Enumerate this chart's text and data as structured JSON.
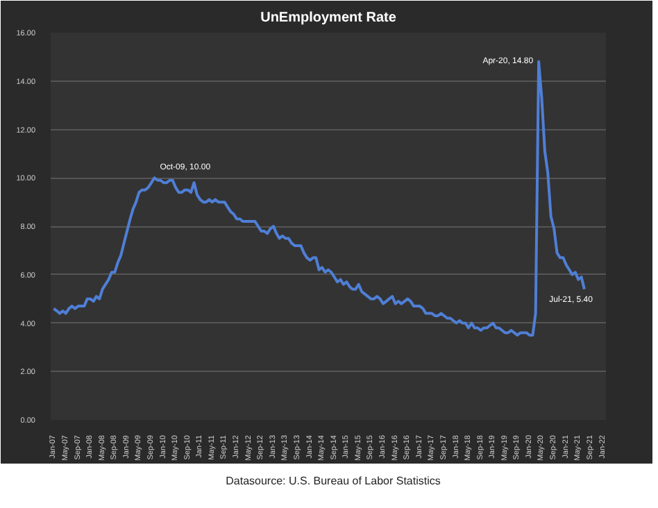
{
  "chart_data": {
    "type": "line",
    "title": "UnEmployment Rate",
    "x": [
      "2007-01",
      "2007-02",
      "2007-03",
      "2007-04",
      "2007-05",
      "2007-06",
      "2007-07",
      "2007-08",
      "2007-09",
      "2007-10",
      "2007-11",
      "2007-12",
      "2008-01",
      "2008-02",
      "2008-03",
      "2008-04",
      "2008-05",
      "2008-06",
      "2008-07",
      "2008-08",
      "2008-09",
      "2008-10",
      "2008-11",
      "2008-12",
      "2009-01",
      "2009-02",
      "2009-03",
      "2009-04",
      "2009-05",
      "2009-06",
      "2009-07",
      "2009-08",
      "2009-09",
      "2009-10",
      "2009-11",
      "2009-12",
      "2010-01",
      "2010-02",
      "2010-03",
      "2010-04",
      "2010-05",
      "2010-06",
      "2010-07",
      "2010-08",
      "2010-09",
      "2010-10",
      "2010-11",
      "2010-12",
      "2011-01",
      "2011-02",
      "2011-03",
      "2011-04",
      "2011-05",
      "2011-06",
      "2011-07",
      "2011-08",
      "2011-09",
      "2011-10",
      "2011-11",
      "2011-12",
      "2012-01",
      "2012-02",
      "2012-03",
      "2012-04",
      "2012-05",
      "2012-06",
      "2012-07",
      "2012-08",
      "2012-09",
      "2012-10",
      "2012-11",
      "2012-12",
      "2013-01",
      "2013-02",
      "2013-03",
      "2013-04",
      "2013-05",
      "2013-06",
      "2013-07",
      "2013-08",
      "2013-09",
      "2013-10",
      "2013-11",
      "2013-12",
      "2014-01",
      "2014-02",
      "2014-03",
      "2014-04",
      "2014-05",
      "2014-06",
      "2014-07",
      "2014-08",
      "2014-09",
      "2014-10",
      "2014-11",
      "2014-12",
      "2015-01",
      "2015-02",
      "2015-03",
      "2015-04",
      "2015-05",
      "2015-06",
      "2015-07",
      "2015-08",
      "2015-09",
      "2015-10",
      "2015-11",
      "2015-12",
      "2016-01",
      "2016-02",
      "2016-03",
      "2016-04",
      "2016-05",
      "2016-06",
      "2016-07",
      "2016-08",
      "2016-09",
      "2016-10",
      "2016-11",
      "2016-12",
      "2017-01",
      "2017-02",
      "2017-03",
      "2017-04",
      "2017-05",
      "2017-06",
      "2017-07",
      "2017-08",
      "2017-09",
      "2017-10",
      "2017-11",
      "2017-12",
      "2018-01",
      "2018-02",
      "2018-03",
      "2018-04",
      "2018-05",
      "2018-06",
      "2018-07",
      "2018-08",
      "2018-09",
      "2018-10",
      "2018-11",
      "2018-12",
      "2019-01",
      "2019-02",
      "2019-03",
      "2019-04",
      "2019-05",
      "2019-06",
      "2019-07",
      "2019-08",
      "2019-09",
      "2019-10",
      "2019-11",
      "2019-12",
      "2020-01",
      "2020-02",
      "2020-03",
      "2020-04",
      "2020-05",
      "2020-06",
      "2020-07",
      "2020-08",
      "2020-09",
      "2020-10",
      "2020-11",
      "2020-12",
      "2021-01",
      "2021-02",
      "2021-03",
      "2021-04",
      "2021-05",
      "2021-06",
      "2021-07"
    ],
    "series": [
      {
        "color": "#4f7fd6",
        "values": [
          4.6,
          4.5,
          4.4,
          4.5,
          4.4,
          4.6,
          4.7,
          4.6,
          4.7,
          4.7,
          4.7,
          5.0,
          5.0,
          4.9,
          5.1,
          5.0,
          5.4,
          5.6,
          5.8,
          6.1,
          6.1,
          6.5,
          6.8,
          7.3,
          7.8,
          8.3,
          8.7,
          9.0,
          9.4,
          9.5,
          9.5,
          9.6,
          9.8,
          10.0,
          9.9,
          9.9,
          9.8,
          9.8,
          9.9,
          9.9,
          9.6,
          9.4,
          9.4,
          9.5,
          9.5,
          9.4,
          9.8,
          9.3,
          9.1,
          9.0,
          9.0,
          9.1,
          9.0,
          9.1,
          9.0,
          9.0,
          9.0,
          8.8,
          8.6,
          8.5,
          8.3,
          8.3,
          8.2,
          8.2,
          8.2,
          8.2,
          8.2,
          8.0,
          7.8,
          7.8,
          7.7,
          7.9,
          8.0,
          7.7,
          7.5,
          7.6,
          7.5,
          7.5,
          7.3,
          7.2,
          7.2,
          7.2,
          6.9,
          6.7,
          6.6,
          6.7,
          6.7,
          6.2,
          6.3,
          6.1,
          6.2,
          6.1,
          5.9,
          5.7,
          5.8,
          5.6,
          5.7,
          5.5,
          5.4,
          5.4,
          5.6,
          5.3,
          5.2,
          5.1,
          5.0,
          5.0,
          5.1,
          5.0,
          4.8,
          4.9,
          5.0,
          5.1,
          4.8,
          4.9,
          4.8,
          4.9,
          5.0,
          4.9,
          4.7,
          4.7,
          4.7,
          4.6,
          4.4,
          4.4,
          4.4,
          4.3,
          4.3,
          4.4,
          4.3,
          4.2,
          4.2,
          4.1,
          4.0,
          4.1,
          4.0,
          4.0,
          3.8,
          4.0,
          3.8,
          3.8,
          3.7,
          3.8,
          3.8,
          3.9,
          4.0,
          3.8,
          3.8,
          3.7,
          3.6,
          3.6,
          3.7,
          3.6,
          3.5,
          3.6,
          3.6,
          3.6,
          3.5,
          3.5,
          4.4,
          14.8,
          13.3,
          11.1,
          10.2,
          8.4,
          7.9,
          6.9,
          6.7,
          6.7,
          6.4,
          6.2,
          6.0,
          6.1,
          5.8,
          5.9,
          5.4
        ]
      }
    ],
    "xlim": [
      "2006-12",
      "2022-02"
    ],
    "xticks": [
      {
        "value": "2007-01",
        "label": "Jan-07"
      },
      {
        "value": "2007-05",
        "label": "May-07"
      },
      {
        "value": "2007-09",
        "label": "Sep-07"
      },
      {
        "value": "2008-01",
        "label": "Jan-08"
      },
      {
        "value": "2008-05",
        "label": "May-08"
      },
      {
        "value": "2008-09",
        "label": "Sep-08"
      },
      {
        "value": "2009-01",
        "label": "Jan-09"
      },
      {
        "value": "2009-05",
        "label": "May-09"
      },
      {
        "value": "2009-09",
        "label": "Sep-09"
      },
      {
        "value": "2010-01",
        "label": "Jan-10"
      },
      {
        "value": "2010-05",
        "label": "May-10"
      },
      {
        "value": "2010-09",
        "label": "Sep-10"
      },
      {
        "value": "2011-01",
        "label": "Jan-11"
      },
      {
        "value": "2011-05",
        "label": "May-11"
      },
      {
        "value": "2011-09",
        "label": "Sep-11"
      },
      {
        "value": "2012-01",
        "label": "Jan-12"
      },
      {
        "value": "2012-05",
        "label": "May-12"
      },
      {
        "value": "2012-09",
        "label": "Sep-12"
      },
      {
        "value": "2013-01",
        "label": "Jan-13"
      },
      {
        "value": "2013-05",
        "label": "May-13"
      },
      {
        "value": "2013-09",
        "label": "Sep-13"
      },
      {
        "value": "2014-01",
        "label": "Jan-14"
      },
      {
        "value": "2014-05",
        "label": "May-14"
      },
      {
        "value": "2014-09",
        "label": "Sep-14"
      },
      {
        "value": "2015-01",
        "label": "Jan-15"
      },
      {
        "value": "2015-05",
        "label": "May-15"
      },
      {
        "value": "2015-09",
        "label": "Sep-15"
      },
      {
        "value": "2016-01",
        "label": "Jan-16"
      },
      {
        "value": "2016-05",
        "label": "May-16"
      },
      {
        "value": "2016-09",
        "label": "Sep-16"
      },
      {
        "value": "2017-01",
        "label": "Jan-17"
      },
      {
        "value": "2017-05",
        "label": "May-17"
      },
      {
        "value": "2017-09",
        "label": "Sep-17"
      },
      {
        "value": "2018-01",
        "label": "Jan-18"
      },
      {
        "value": "2018-05",
        "label": "May-18"
      },
      {
        "value": "2018-09",
        "label": "Sep-18"
      },
      {
        "value": "2019-01",
        "label": "Jan-19"
      },
      {
        "value": "2019-05",
        "label": "May-19"
      },
      {
        "value": "2019-09",
        "label": "Sep-19"
      },
      {
        "value": "2020-01",
        "label": "Jan-20"
      },
      {
        "value": "2020-05",
        "label": "May-20"
      },
      {
        "value": "2020-09",
        "label": "Sep-20"
      },
      {
        "value": "2021-01",
        "label": "Jan-21"
      },
      {
        "value": "2021-05",
        "label": "May-21"
      },
      {
        "value": "2021-09",
        "label": "Sep-21"
      },
      {
        "value": "2022-01",
        "label": "Jan-22"
      }
    ],
    "ylim": [
      0,
      16
    ],
    "yticks": [
      {
        "value": 0,
        "label": "0.00"
      },
      {
        "value": 2,
        "label": "2.00"
      },
      {
        "value": 4,
        "label": "4.00"
      },
      {
        "value": 6,
        "label": "6.00"
      },
      {
        "value": 8,
        "label": "8.00"
      },
      {
        "value": 10,
        "label": "10.00"
      },
      {
        "value": 12,
        "label": "12.00"
      },
      {
        "value": 14,
        "label": "14.00"
      },
      {
        "value": 16,
        "label": "16.00"
      }
    ],
    "grid": "y",
    "annotations": [
      {
        "text": "Oct-09, 10.00",
        "x": "2009-10",
        "y": 10.0
      },
      {
        "text": "Apr-20, 14.80",
        "x": "2020-04",
        "y": 14.8
      },
      {
        "text": "Jul-21, 5.40",
        "x": "2021-07",
        "y": 5.4
      },
      "Datasource: U.S. Bureau of Labor Statistics"
    ]
  }
}
